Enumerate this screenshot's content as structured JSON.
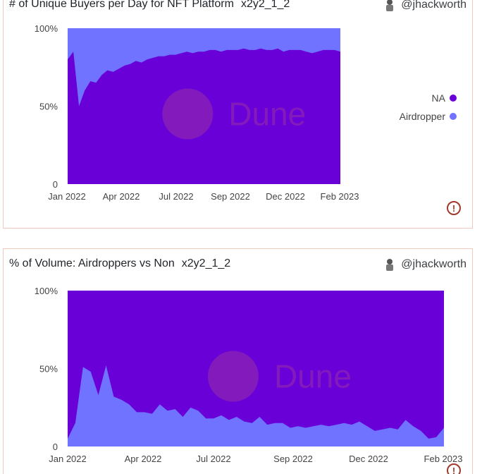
{
  "colors": {
    "na": "#6a00d8",
    "airdropper": "#6f73ff",
    "watermark": "#b04a8a"
  },
  "watermark": "Dune",
  "charts": [
    {
      "title": "# of Unique Buyers per Day for NFT Platform",
      "subtitle": "x2y2_1_2",
      "author": "@jhackworth",
      "legend": [
        {
          "name": "NA",
          "color": "#6a00d8"
        },
        {
          "name": "Airdropper",
          "color": "#6f73ff"
        }
      ]
    },
    {
      "title": "% of Volume: Airdroppers vs Non",
      "subtitle": "x2y2_1_2",
      "author": "@jhackworth"
    }
  ],
  "chart_data": [
    {
      "type": "area",
      "stacked_percent": true,
      "x_ticks": [
        "Jan 2022",
        "Apr 2022",
        "Jul 2022",
        "Sep 2022",
        "Dec 2022",
        "Feb 2023"
      ],
      "y_ticks": [
        "0",
        "50%",
        "100%"
      ],
      "ylim": [
        0,
        100
      ],
      "series": [
        {
          "name": "NA",
          "values": [
            80,
            85,
            50,
            60,
            66,
            65,
            70,
            73,
            72,
            74,
            76,
            77,
            79,
            78,
            80,
            81,
            82,
            82,
            83,
            83,
            84,
            85,
            84,
            85,
            85,
            86,
            86,
            85,
            86,
            86,
            86,
            87,
            86,
            86,
            87,
            86,
            86,
            87,
            85,
            86,
            86,
            86,
            85,
            84,
            85,
            86,
            86,
            86,
            85
          ]
        },
        {
          "name": "Airdropper",
          "values": [
            20,
            15,
            50,
            40,
            34,
            35,
            30,
            27,
            28,
            26,
            24,
            23,
            21,
            22,
            20,
            19,
            18,
            18,
            17,
            17,
            16,
            15,
            16,
            15,
            15,
            14,
            14,
            15,
            14,
            14,
            14,
            13,
            14,
            14,
            13,
            14,
            14,
            13,
            15,
            14,
            14,
            14,
            15,
            16,
            15,
            14,
            14,
            14,
            15
          ]
        }
      ]
    },
    {
      "type": "area",
      "stacked_percent": true,
      "x_ticks": [
        "Jan 2022",
        "Apr 2022",
        "Jul 2022",
        "Sep 2022",
        "Dec 2022",
        "Feb 2023"
      ],
      "y_ticks": [
        "0",
        "50%",
        "100%"
      ],
      "ylim": [
        0,
        100
      ],
      "series": [
        {
          "name": "Airdropper",
          "values": [
            5,
            15,
            51,
            48,
            33,
            52,
            32,
            30,
            27,
            22,
            22,
            21,
            27,
            23,
            24,
            19,
            25,
            23,
            18,
            18,
            20,
            17,
            19,
            16,
            15,
            19,
            14,
            15,
            15,
            12,
            13,
            12,
            13,
            14,
            13,
            14,
            15,
            14,
            16,
            13,
            10,
            11,
            12,
            11,
            17,
            13,
            10,
            5,
            6,
            12
          ]
        },
        {
          "name": "NA",
          "values": [
            95,
            85,
            49,
            52,
            67,
            48,
            68,
            70,
            73,
            78,
            78,
            79,
            73,
            77,
            76,
            81,
            75,
            77,
            82,
            82,
            80,
            83,
            81,
            84,
            85,
            81,
            86,
            85,
            85,
            88,
            87,
            88,
            87,
            86,
            87,
            86,
            85,
            86,
            84,
            87,
            90,
            89,
            88,
            89,
            83,
            87,
            90,
            95,
            94,
            88
          ]
        }
      ]
    }
  ]
}
